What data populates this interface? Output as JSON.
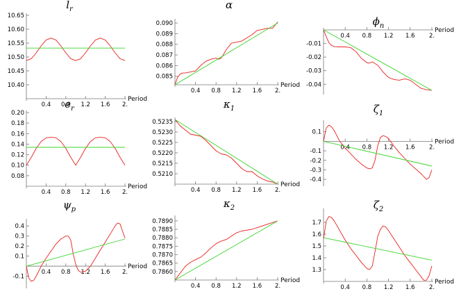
{
  "chart_data": [
    {
      "type": "line",
      "title": "l",
      "title_sub": "r",
      "xlabel": "Period",
      "ylabel": "",
      "xlim": [
        0,
        2
      ],
      "ylim": [
        10.35,
        10.65
      ],
      "xticks": [
        0.4,
        0.8,
        1.2,
        1.6,
        2.0
      ],
      "xtick_labels": [
        "0.4",
        "0.8",
        "1.2",
        "1.6",
        "2."
      ],
      "yticks": [
        10.4,
        10.45,
        10.5,
        10.55,
        10.6,
        10.65
      ],
      "ytick_labels": [
        "10.40",
        "10.45",
        "10.50",
        "10.55",
        "10.60",
        "10.65"
      ],
      "x_axis_at": 10.35,
      "series": [
        {
          "color": "#e8201c",
          "x": [
            0,
            0.1,
            0.2,
            0.3,
            0.4,
            0.5,
            0.6,
            0.7,
            0.8,
            0.9,
            1.0,
            1.1,
            1.2,
            1.3,
            1.4,
            1.5,
            1.6,
            1.7,
            1.8,
            1.9,
            2.0
          ],
          "y": [
            10.487,
            10.494,
            10.515,
            10.54,
            10.561,
            10.568,
            10.561,
            10.54,
            10.515,
            10.494,
            10.487,
            10.494,
            10.515,
            10.54,
            10.561,
            10.568,
            10.561,
            10.54,
            10.515,
            10.494,
            10.487
          ]
        },
        {
          "color": "#39d42a",
          "x": [
            0,
            2
          ],
          "y": [
            10.532,
            10.532
          ]
        }
      ]
    },
    {
      "type": "line",
      "title": "α",
      "title_sub": "",
      "xlabel": "Period",
      "ylabel": "",
      "xlim": [
        0,
        2
      ],
      "ylim": [
        0.0842,
        0.0902
      ],
      "xticks": [
        0.4,
        0.8,
        1.2,
        1.6,
        2.0
      ],
      "xtick_labels": [
        "0.4",
        "0.8",
        "1.2",
        "1.6",
        "2."
      ],
      "yticks": [
        0.085,
        0.086,
        0.087,
        0.088,
        0.089,
        0.09
      ],
      "ytick_labels": [
        "0.085",
        "0.086",
        "0.087",
        "0.088",
        "0.089",
        "0.090"
      ],
      "x_axis_at": 0.0842,
      "series": [
        {
          "color": "#e8201c",
          "x": [
            0,
            0.05,
            0.1,
            0.15,
            0.2,
            0.3,
            0.4,
            0.5,
            0.6,
            0.7,
            0.8,
            0.85,
            0.9,
            1.0,
            1.1,
            1.2,
            1.3,
            1.4,
            1.5,
            1.6,
            1.7,
            1.8,
            1.9,
            2.0
          ],
          "y": [
            0.0842,
            0.0849,
            0.0852,
            0.0853,
            0.0853,
            0.0854,
            0.0855,
            0.086,
            0.0864,
            0.0866,
            0.0867,
            0.0866,
            0.0867,
            0.0875,
            0.0881,
            0.0882,
            0.0883,
            0.0886,
            0.0889,
            0.0893,
            0.0894,
            0.0895,
            0.0895,
            0.0901
          ]
        },
        {
          "color": "#39d42a",
          "x": [
            0,
            2
          ],
          "y": [
            0.0842,
            0.09
          ]
        }
      ]
    },
    {
      "type": "line",
      "title": "ϕ",
      "title_sub": "n",
      "xlabel": "Period",
      "ylabel": "",
      "xlim": [
        0,
        2
      ],
      "ylim": [
        -0.046,
        0.0
      ],
      "xticks": [
        0.4,
        0.8,
        1.2,
        1.6,
        2.0
      ],
      "xtick_labels": [
        "0.4",
        "0.8",
        "1.2",
        "1.6",
        "2."
      ],
      "yticks": [
        -0.01,
        -0.02,
        -0.03,
        -0.04
      ],
      "ytick_labels": [
        "-0.01",
        "-0.02",
        "-0.03",
        "-0.04"
      ],
      "x_axis_at": 0,
      "series": [
        {
          "color": "#e8201c",
          "x": [
            0,
            0.05,
            0.1,
            0.15,
            0.2,
            0.3,
            0.4,
            0.5,
            0.6,
            0.7,
            0.8,
            0.85,
            0.9,
            1.0,
            1.1,
            1.2,
            1.3,
            1.4,
            1.5,
            1.6,
            1.7,
            1.8,
            1.9,
            2.0
          ],
          "y": [
            0.0,
            -0.005,
            -0.0095,
            -0.0115,
            -0.0123,
            -0.0125,
            -0.0125,
            -0.013,
            -0.016,
            -0.021,
            -0.024,
            -0.0245,
            -0.0235,
            -0.026,
            -0.031,
            -0.035,
            -0.0365,
            -0.037,
            -0.036,
            -0.037,
            -0.04,
            -0.043,
            -0.044,
            -0.0445
          ]
        },
        {
          "color": "#39d42a",
          "x": [
            0,
            2
          ],
          "y": [
            0.0,
            -0.0445
          ]
        }
      ]
    },
    {
      "type": "line",
      "title": "e",
      "title_sub": "r",
      "xlabel": "Period",
      "ylabel": "",
      "xlim": [
        0,
        2
      ],
      "ylim": [
        0.06,
        0.2
      ],
      "xticks": [
        0.4,
        0.8,
        1.2,
        1.6,
        2.0
      ],
      "xtick_labels": [
        "0.4",
        "0.8",
        "1.2",
        "1.6",
        "2."
      ],
      "yticks": [
        0.08,
        0.1,
        0.12,
        0.14,
        0.16,
        0.18,
        0.2
      ],
      "ytick_labels": [
        "0.08",
        "0.10",
        "0.12",
        "0.14",
        "0.16",
        "0.18",
        "0.20"
      ],
      "x_axis_at": 0.06,
      "series": [
        {
          "color": "#e8201c",
          "x": [
            0,
            0.1,
            0.2,
            0.3,
            0.4,
            0.5,
            0.6,
            0.7,
            0.8,
            0.9,
            1.0,
            1.1,
            1.2,
            1.3,
            1.4,
            1.5,
            1.6,
            1.7,
            1.8,
            1.9,
            2.0
          ],
          "y": [
            0.1,
            0.115,
            0.132,
            0.145,
            0.152,
            0.153,
            0.152,
            0.145,
            0.132,
            0.115,
            0.1,
            0.115,
            0.132,
            0.145,
            0.152,
            0.153,
            0.152,
            0.145,
            0.132,
            0.115,
            0.1
          ]
        },
        {
          "color": "#39d42a",
          "x": [
            0,
            2
          ],
          "y": [
            0.134,
            0.134
          ]
        }
      ]
    },
    {
      "type": "line",
      "title": "κ",
      "title_sub": "1",
      "xlabel": "Period",
      "ylabel": "",
      "xlim": [
        0,
        2
      ],
      "ylim": [
        0.5205,
        0.5236
      ],
      "xticks": [
        0.4,
        0.8,
        1.2,
        1.6,
        2.0
      ],
      "xtick_labels": [
        "0.4",
        "0.8",
        "1.2",
        "1.6",
        "2."
      ],
      "yticks": [
        0.521,
        0.5215,
        0.522,
        0.5225,
        0.523,
        0.5235
      ],
      "ytick_labels": [
        "0.5210",
        "0.5215",
        "0.5220",
        "0.5225",
        "0.5230",
        "0.5235"
      ],
      "x_axis_at": 0.5205,
      "series": [
        {
          "color": "#e8201c",
          "x": [
            0,
            0.1,
            0.2,
            0.3,
            0.4,
            0.5,
            0.6,
            0.7,
            0.8,
            0.9,
            1.0,
            1.1,
            1.2,
            1.3,
            1.4,
            1.5,
            1.6,
            1.7,
            1.8,
            1.9,
            2.0
          ],
          "y": [
            0.5236,
            0.5233,
            0.5231,
            0.5229,
            0.52285,
            0.5228,
            0.5226,
            0.52235,
            0.5221,
            0.52195,
            0.5219,
            0.52175,
            0.5215,
            0.52125,
            0.5211,
            0.5211,
            0.5209,
            0.52075,
            0.52065,
            0.5206,
            0.5205
          ]
        },
        {
          "color": "#39d42a",
          "x": [
            0,
            2
          ],
          "y": [
            0.5236,
            0.5205
          ]
        }
      ]
    },
    {
      "type": "line",
      "title": "ζ",
      "title_sub": "1",
      "xlabel": "Period",
      "ylabel": "",
      "xlim": [
        0,
        2
      ],
      "ylim": [
        -0.45,
        0.2
      ],
      "xticks": [
        0.4,
        0.8,
        1.2,
        1.6,
        2.0
      ],
      "xtick_labels": [
        "0.4",
        "0.8",
        "1.2",
        "1.6",
        "2."
      ],
      "yticks": [
        0.1,
        -0.1,
        -0.2,
        -0.3,
        -0.4
      ],
      "ytick_labels": [
        "0.1",
        "-0.1",
        "-0.2",
        "-0.3",
        "-0.4"
      ],
      "x_axis_at": 0,
      "series": [
        {
          "color": "#e8201c",
          "x": [
            0,
            0.05,
            0.1,
            0.15,
            0.2,
            0.3,
            0.4,
            0.5,
            0.6,
            0.7,
            0.8,
            0.85,
            0.9,
            0.95,
            1.0,
            1.05,
            1.1,
            1.15,
            1.2,
            1.3,
            1.4,
            1.5,
            1.6,
            1.7,
            1.8,
            1.85,
            1.9,
            1.95,
            2.0
          ],
          "y": [
            0.0,
            0.14,
            0.17,
            0.15,
            0.11,
            0.0,
            -0.07,
            -0.13,
            -0.19,
            -0.24,
            -0.28,
            -0.29,
            -0.28,
            -0.2,
            -0.05,
            0.04,
            0.06,
            0.05,
            0.03,
            -0.05,
            -0.12,
            -0.18,
            -0.24,
            -0.29,
            -0.34,
            -0.37,
            -0.4,
            -0.38,
            -0.3
          ]
        },
        {
          "color": "#39d42a",
          "x": [
            0,
            2
          ],
          "y": [
            0.0,
            -0.26
          ]
        }
      ]
    },
    {
      "type": "line",
      "title": "ψ",
      "title_sub": "p",
      "xlabel": "Period",
      "ylabel": "",
      "xlim": [
        0,
        2
      ],
      "ylim": [
        -0.2,
        0.45
      ],
      "xticks": [
        0.4,
        0.8,
        1.2,
        1.6,
        2.0
      ],
      "xtick_labels": [
        "0.4",
        "0.8",
        "1.2",
        "1.6",
        "2."
      ],
      "yticks": [
        0.4,
        0.3,
        0.2,
        0.1,
        -0.1
      ],
      "ytick_labels": [
        "0.4",
        "0.3",
        "0.2",
        "0.1",
        "-0.1"
      ],
      "x_axis_at": 0,
      "series": [
        {
          "color": "#e8201c",
          "x": [
            0,
            0.05,
            0.1,
            0.15,
            0.2,
            0.3,
            0.4,
            0.5,
            0.6,
            0.7,
            0.8,
            0.85,
            0.9,
            0.95,
            1.0,
            1.05,
            1.1,
            1.2,
            1.3,
            1.4,
            1.5,
            1.6,
            1.7,
            1.8,
            1.85,
            1.9,
            1.95,
            2.0
          ],
          "y": [
            0.0,
            -0.12,
            -0.15,
            -0.14,
            -0.1,
            0.0,
            0.08,
            0.15,
            0.22,
            0.27,
            0.3,
            0.3,
            0.26,
            0.12,
            0.02,
            -0.04,
            -0.06,
            -0.05,
            0.0,
            0.08,
            0.16,
            0.24,
            0.32,
            0.4,
            0.43,
            0.42,
            0.35,
            0.28
          ]
        },
        {
          "color": "#39d42a",
          "x": [
            0,
            2
          ],
          "y": [
            0.0,
            0.27
          ]
        }
      ]
    },
    {
      "type": "line",
      "title": "κ",
      "title_sub": "2",
      "xlabel": "Period",
      "ylabel": "",
      "xlim": [
        0,
        2
      ],
      "ylim": [
        0.7855,
        0.7892
      ],
      "xticks": [
        0.4,
        0.8,
        1.2,
        1.6,
        2.0
      ],
      "xtick_labels": [
        "0.4",
        "0.8",
        "1.2",
        "1.6",
        "2."
      ],
      "yticks": [
        0.786,
        0.7865,
        0.787,
        0.7875,
        0.788,
        0.7885,
        0.789
      ],
      "ytick_labels": [
        "0.7860",
        "0.7865",
        "0.7870",
        "0.7875",
        "0.7880",
        "0.7885",
        "0.7890"
      ],
      "x_axis_at": 0.7855,
      "series": [
        {
          "color": "#e8201c",
          "x": [
            0,
            0.1,
            0.2,
            0.3,
            0.4,
            0.5,
            0.6,
            0.7,
            0.8,
            0.9,
            1.0,
            1.1,
            1.2,
            1.3,
            1.4,
            1.5,
            1.6,
            1.7,
            1.8,
            1.9,
            2.0
          ],
          "y": [
            0.7855,
            0.7859,
            0.7863,
            0.78655,
            0.7867,
            0.78685,
            0.7871,
            0.7874,
            0.78765,
            0.7878,
            0.7879,
            0.7881,
            0.7883,
            0.7884,
            0.78845,
            0.7885,
            0.7886,
            0.7887,
            0.7888,
            0.7889,
            0.789
          ]
        },
        {
          "color": "#39d42a",
          "x": [
            0,
            2
          ],
          "y": [
            0.7855,
            0.789
          ]
        }
      ]
    },
    {
      "type": "line",
      "title": "ζ",
      "title_sub": "2",
      "xlabel": "Period",
      "ylabel": "",
      "xlim": [
        0,
        2
      ],
      "ylim": [
        1.2,
        1.8
      ],
      "xticks": [
        0.4,
        0.8,
        1.2,
        1.6,
        2.0
      ],
      "xtick_labels": [
        "0.4",
        "0.8",
        "1.2",
        "1.6",
        "2."
      ],
      "yticks": [
        1.7,
        1.6,
        1.5,
        1.4,
        1.3
      ],
      "ytick_labels": [
        "1.7",
        "1.6",
        "1.5",
        "1.4",
        "1.3"
      ],
      "x_axis_at": 1.2,
      "series": [
        {
          "color": "#e8201c",
          "x": [
            0,
            0.05,
            0.1,
            0.15,
            0.2,
            0.3,
            0.4,
            0.5,
            0.6,
            0.7,
            0.8,
            0.85,
            0.9,
            0.95,
            1.0,
            1.05,
            1.1,
            1.15,
            1.2,
            1.3,
            1.4,
            1.5,
            1.6,
            1.7,
            1.8,
            1.85,
            1.9,
            1.95,
            2.0
          ],
          "y": [
            1.56,
            1.71,
            1.75,
            1.74,
            1.71,
            1.63,
            1.55,
            1.48,
            1.42,
            1.36,
            1.31,
            1.3,
            1.33,
            1.45,
            1.58,
            1.64,
            1.67,
            1.66,
            1.63,
            1.56,
            1.49,
            1.42,
            1.36,
            1.3,
            1.24,
            1.21,
            1.21,
            1.25,
            1.33
          ]
        },
        {
          "color": "#39d42a",
          "x": [
            0,
            2
          ],
          "y": [
            1.57,
            1.38
          ]
        }
      ]
    }
  ]
}
